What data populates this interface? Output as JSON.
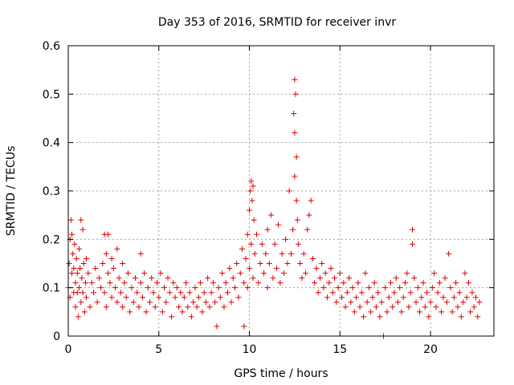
{
  "chart_data": {
    "type": "scatter",
    "title": "Day 353 of 2016, SRMTID for receiver invr",
    "xlabel": "GPS time / hours",
    "ylabel": "SRMTID / TECUs",
    "xlim": [
      0,
      23.5
    ],
    "ylim": [
      0,
      0.6
    ],
    "x_ticks": [
      0,
      5,
      10,
      15,
      20
    ],
    "x_tick_labels": [
      "0",
      "5",
      "10",
      "15",
      "20"
    ],
    "y_ticks": [
      0,
      0.1,
      0.2,
      0.3,
      0.4,
      0.5,
      0.6
    ],
    "y_tick_labels": [
      "0",
      "0.1",
      "0.2",
      "0.3",
      "0.4",
      "0.5",
      "0.6"
    ],
    "grid": true,
    "marker": "+",
    "color": "#e00000",
    "series": [
      {
        "name": "SRMTID",
        "points": [
          [
            0.0,
            0.1
          ],
          [
            0.05,
            0.15
          ],
          [
            0.1,
            0.2
          ],
          [
            0.1,
            0.08
          ],
          [
            0.15,
            0.24
          ],
          [
            0.2,
            0.13
          ],
          [
            0.2,
            0.21
          ],
          [
            0.25,
            0.17
          ],
          [
            0.3,
            0.09
          ],
          [
            0.3,
            0.14
          ],
          [
            0.35,
            0.19
          ],
          [
            0.4,
            0.06
          ],
          [
            0.4,
            0.11
          ],
          [
            0.45,
            0.16
          ],
          [
            0.5,
            0.09
          ],
          [
            0.5,
            0.13
          ],
          [
            0.55,
            0.04
          ],
          [
            0.6,
            0.1
          ],
          [
            0.6,
            0.18
          ],
          [
            0.65,
            0.14
          ],
          [
            0.7,
            0.24
          ],
          [
            0.7,
            0.07
          ],
          [
            0.75,
            0.12
          ],
          [
            0.8,
            0.22
          ],
          [
            0.8,
            0.09
          ],
          [
            0.85,
            0.15
          ],
          [
            0.9,
            0.05
          ],
          [
            0.95,
            0.11
          ],
          [
            1.0,
            0.16
          ],
          [
            1.0,
            0.08
          ],
          [
            1.1,
            0.13
          ],
          [
            1.2,
            0.06
          ],
          [
            1.3,
            0.11
          ],
          [
            1.4,
            0.09
          ],
          [
            1.5,
            0.14
          ],
          [
            1.6,
            0.07
          ],
          [
            1.7,
            0.12
          ],
          [
            1.8,
            0.1
          ],
          [
            1.9,
            0.15
          ],
          [
            2.0,
            0.21
          ],
          [
            2.0,
            0.09
          ],
          [
            2.1,
            0.17
          ],
          [
            2.1,
            0.06
          ],
          [
            2.2,
            0.21
          ],
          [
            2.2,
            0.13
          ],
          [
            2.3,
            0.11
          ],
          [
            2.4,
            0.16
          ],
          [
            2.4,
            0.08
          ],
          [
            2.5,
            0.14
          ],
          [
            2.6,
            0.1
          ],
          [
            2.7,
            0.18
          ],
          [
            2.7,
            0.07
          ],
          [
            2.8,
            0.12
          ],
          [
            2.9,
            0.09
          ],
          [
            3.0,
            0.15
          ],
          [
            3.0,
            0.06
          ],
          [
            3.1,
            0.11
          ],
          [
            3.2,
            0.08
          ],
          [
            3.3,
            0.13
          ],
          [
            3.4,
            0.05
          ],
          [
            3.5,
            0.1
          ],
          [
            3.6,
            0.07
          ],
          [
            3.7,
            0.12
          ],
          [
            3.8,
            0.09
          ],
          [
            3.9,
            0.06
          ],
          [
            4.0,
            0.11
          ],
          [
            4.0,
            0.17
          ],
          [
            4.1,
            0.08
          ],
          [
            4.2,
            0.13
          ],
          [
            4.3,
            0.05
          ],
          [
            4.4,
            0.1
          ],
          [
            4.5,
            0.07
          ],
          [
            4.6,
            0.12
          ],
          [
            4.7,
            0.09
          ],
          [
            4.8,
            0.06
          ],
          [
            4.9,
            0.11
          ],
          [
            5.0,
            0.08
          ],
          [
            5.1,
            0.13
          ],
          [
            5.2,
            0.05
          ],
          [
            5.3,
            0.1
          ],
          [
            5.4,
            0.07
          ],
          [
            5.5,
            0.12
          ],
          [
            5.6,
            0.09
          ],
          [
            5.7,
            0.04
          ],
          [
            5.8,
            0.11
          ],
          [
            5.9,
            0.08
          ],
          [
            6.0,
            0.1
          ],
          [
            6.1,
            0.06
          ],
          [
            6.2,
            0.09
          ],
          [
            6.3,
            0.05
          ],
          [
            6.4,
            0.08
          ],
          [
            6.5,
            0.11
          ],
          [
            6.6,
            0.06
          ],
          [
            6.7,
            0.09
          ],
          [
            6.8,
            0.04
          ],
          [
            6.9,
            0.07
          ],
          [
            7.0,
            0.1
          ],
          [
            7.1,
            0.06
          ],
          [
            7.2,
            0.08
          ],
          [
            7.3,
            0.11
          ],
          [
            7.4,
            0.05
          ],
          [
            7.5,
            0.09
          ],
          [
            7.6,
            0.07
          ],
          [
            7.7,
            0.12
          ],
          [
            7.8,
            0.06
          ],
          [
            7.9,
            0.09
          ],
          [
            8.0,
            0.11
          ],
          [
            8.1,
            0.07
          ],
          [
            8.2,
            0.02
          ],
          [
            8.3,
            0.1
          ],
          [
            8.4,
            0.08
          ],
          [
            8.5,
            0.13
          ],
          [
            8.6,
            0.06
          ],
          [
            8.7,
            0.11
          ],
          [
            8.8,
            0.09
          ],
          [
            8.9,
            0.14
          ],
          [
            9.0,
            0.07
          ],
          [
            9.1,
            0.12
          ],
          [
            9.2,
            0.1
          ],
          [
            9.3,
            0.15
          ],
          [
            9.4,
            0.08
          ],
          [
            9.5,
            0.13
          ],
          [
            9.6,
            0.18
          ],
          [
            9.7,
            0.11
          ],
          [
            9.7,
            0.02
          ],
          [
            9.8,
            0.16
          ],
          [
            9.9,
            0.21
          ],
          [
            9.9,
            0.1
          ],
          [
            10.0,
            0.26
          ],
          [
            10.0,
            0.14
          ],
          [
            10.05,
            0.3
          ],
          [
            10.1,
            0.32
          ],
          [
            10.1,
            0.19
          ],
          [
            10.15,
            0.28
          ],
          [
            10.2,
            0.31
          ],
          [
            10.2,
            0.12
          ],
          [
            10.25,
            0.24
          ],
          [
            10.3,
            0.17
          ],
          [
            10.4,
            0.21
          ],
          [
            10.5,
            0.11
          ],
          [
            10.6,
            0.15
          ],
          [
            10.7,
            0.19
          ],
          [
            10.8,
            0.13
          ],
          [
            10.9,
            0.17
          ],
          [
            11.0,
            0.22
          ],
          [
            11.0,
            0.1
          ],
          [
            11.1,
            0.15
          ],
          [
            11.2,
            0.25
          ],
          [
            11.3,
            0.12
          ],
          [
            11.4,
            0.19
          ],
          [
            11.5,
            0.14
          ],
          [
            11.6,
            0.23
          ],
          [
            11.7,
            0.11
          ],
          [
            11.8,
            0.17
          ],
          [
            11.9,
            0.13
          ],
          [
            12.0,
            0.2
          ],
          [
            12.1,
            0.15
          ],
          [
            12.2,
            0.3
          ],
          [
            12.3,
            0.17
          ],
          [
            12.4,
            0.22
          ],
          [
            12.45,
            0.46
          ],
          [
            12.5,
            0.53
          ],
          [
            12.5,
            0.42
          ],
          [
            12.5,
            0.33
          ],
          [
            12.55,
            0.5
          ],
          [
            12.6,
            0.37
          ],
          [
            12.6,
            0.28
          ],
          [
            12.65,
            0.24
          ],
          [
            12.7,
            0.19
          ],
          [
            12.8,
            0.15
          ],
          [
            12.9,
            0.12
          ],
          [
            13.0,
            0.17
          ],
          [
            13.1,
            0.13
          ],
          [
            13.2,
            0.22
          ],
          [
            13.3,
            0.25
          ],
          [
            13.4,
            0.28
          ],
          [
            13.5,
            0.16
          ],
          [
            13.6,
            0.11
          ],
          [
            13.7,
            0.14
          ],
          [
            13.8,
            0.09
          ],
          [
            13.9,
            0.12
          ],
          [
            14.0,
            0.15
          ],
          [
            14.1,
            0.1
          ],
          [
            14.2,
            0.13
          ],
          [
            14.3,
            0.08
          ],
          [
            14.4,
            0.11
          ],
          [
            14.5,
            0.14
          ],
          [
            14.6,
            0.09
          ],
          [
            14.7,
            0.12
          ],
          [
            14.8,
            0.07
          ],
          [
            14.9,
            0.1
          ],
          [
            15.0,
            0.13
          ],
          [
            15.1,
            0.08
          ],
          [
            15.2,
            0.11
          ],
          [
            15.3,
            0.06
          ],
          [
            15.4,
            0.09
          ],
          [
            15.5,
            0.12
          ],
          [
            15.6,
            0.07
          ],
          [
            15.7,
            0.1
          ],
          [
            15.8,
            0.05
          ],
          [
            15.9,
            0.08
          ],
          [
            16.0,
            0.11
          ],
          [
            16.1,
            0.06
          ],
          [
            16.2,
            0.09
          ],
          [
            16.3,
            0.04
          ],
          [
            16.4,
            0.13
          ],
          [
            16.5,
            0.07
          ],
          [
            16.6,
            0.1
          ],
          [
            16.7,
            0.05
          ],
          [
            16.8,
            0.08
          ],
          [
            16.9,
            0.11
          ],
          [
            17.0,
            0.06
          ],
          [
            17.1,
            0.09
          ],
          [
            17.2,
            0.04
          ],
          [
            17.3,
            0.07
          ],
          [
            17.4,
            0.0
          ],
          [
            17.5,
            0.1
          ],
          [
            17.6,
            0.05
          ],
          [
            17.7,
            0.08
          ],
          [
            17.8,
            0.11
          ],
          [
            17.9,
            0.06
          ],
          [
            18.0,
            0.09
          ],
          [
            18.1,
            0.12
          ],
          [
            18.2,
            0.07
          ],
          [
            18.3,
            0.1
          ],
          [
            18.4,
            0.05
          ],
          [
            18.5,
            0.08
          ],
          [
            18.6,
            0.11
          ],
          [
            18.7,
            0.13
          ],
          [
            18.8,
            0.06
          ],
          [
            18.9,
            0.09
          ],
          [
            19.0,
            0.22
          ],
          [
            19.0,
            0.19
          ],
          [
            19.1,
            0.12
          ],
          [
            19.2,
            0.07
          ],
          [
            19.3,
            0.1
          ],
          [
            19.4,
            0.05
          ],
          [
            19.5,
            0.08
          ],
          [
            19.6,
            0.11
          ],
          [
            19.7,
            0.06
          ],
          [
            19.8,
            0.09
          ],
          [
            19.9,
            0.04
          ],
          [
            20.0,
            0.07
          ],
          [
            20.1,
            0.1
          ],
          [
            20.2,
            0.13
          ],
          [
            20.3,
            0.06
          ],
          [
            20.4,
            0.09
          ],
          [
            20.5,
            0.11
          ],
          [
            20.6,
            0.05
          ],
          [
            20.7,
            0.08
          ],
          [
            20.8,
            0.12
          ],
          [
            20.9,
            0.07
          ],
          [
            21.0,
            0.17
          ],
          [
            21.1,
            0.1
          ],
          [
            21.2,
            0.05
          ],
          [
            21.3,
            0.08
          ],
          [
            21.4,
            0.11
          ],
          [
            21.5,
            0.06
          ],
          [
            21.6,
            0.09
          ],
          [
            21.7,
            0.04
          ],
          [
            21.8,
            0.07
          ],
          [
            21.9,
            0.13
          ],
          [
            22.0,
            0.08
          ],
          [
            22.1,
            0.11
          ],
          [
            22.2,
            0.05
          ],
          [
            22.3,
            0.09
          ],
          [
            22.4,
            0.06
          ],
          [
            22.5,
            0.08
          ],
          [
            22.6,
            0.04
          ],
          [
            22.7,
            0.07
          ]
        ]
      }
    ]
  }
}
